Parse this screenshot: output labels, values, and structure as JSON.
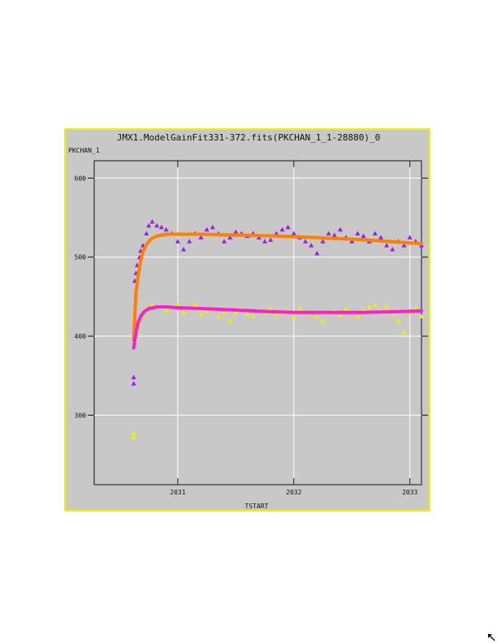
{
  "chart_data": {
    "type": "scatter",
    "title": "JMX1.ModelGainFit331-372.fits(PKCHAN_1_1-28880)_0",
    "xlabel": "TSTART",
    "ylabel": "PKCHAN_1",
    "xlim": [
      2030.28,
      2033.1
    ],
    "ylim": [
      212,
      622
    ],
    "grid": true,
    "x_ticks": [
      2031,
      2032,
      2033
    ],
    "y_ticks": [
      300,
      400,
      500,
      600
    ],
    "series": [
      {
        "color": "#9a1fe6",
        "marker": "triangle",
        "points": [
          [
            2030.62,
            340
          ],
          [
            2030.62,
            348
          ],
          [
            2030.63,
            470
          ],
          [
            2030.64,
            480
          ],
          [
            2030.65,
            490
          ],
          [
            2030.67,
            500
          ],
          [
            2030.68,
            508
          ],
          [
            2030.7,
            515
          ],
          [
            2030.73,
            530
          ],
          [
            2030.75,
            540
          ],
          [
            2030.78,
            545
          ],
          [
            2030.82,
            540
          ],
          [
            2030.86,
            538
          ],
          [
            2030.9,
            535
          ],
          [
            2030.95,
            530
          ],
          [
            2031.0,
            520
          ],
          [
            2031.05,
            510
          ],
          [
            2031.1,
            520
          ],
          [
            2031.15,
            530
          ],
          [
            2031.2,
            525
          ],
          [
            2031.25,
            535
          ],
          [
            2031.3,
            538
          ],
          [
            2031.35,
            530
          ],
          [
            2031.4,
            520
          ],
          [
            2031.45,
            525
          ],
          [
            2031.5,
            532
          ],
          [
            2031.55,
            530
          ],
          [
            2031.6,
            527
          ],
          [
            2031.65,
            530
          ],
          [
            2031.7,
            525
          ],
          [
            2031.75,
            520
          ],
          [
            2031.8,
            522
          ],
          [
            2031.85,
            530
          ],
          [
            2031.9,
            535
          ],
          [
            2031.95,
            538
          ],
          [
            2032.0,
            530
          ],
          [
            2032.05,
            525
          ],
          [
            2032.1,
            520
          ],
          [
            2032.15,
            515
          ],
          [
            2032.2,
            505
          ],
          [
            2032.25,
            520
          ],
          [
            2032.3,
            530
          ],
          [
            2032.35,
            528
          ],
          [
            2032.4,
            535
          ],
          [
            2032.45,
            525
          ],
          [
            2032.5,
            520
          ],
          [
            2032.55,
            530
          ],
          [
            2032.6,
            527
          ],
          [
            2032.65,
            520
          ],
          [
            2032.7,
            530
          ],
          [
            2032.75,
            525
          ],
          [
            2032.8,
            515
          ],
          [
            2032.85,
            510
          ],
          [
            2032.9,
            520
          ],
          [
            2032.95,
            515
          ],
          [
            2033.0,
            525
          ],
          [
            2033.05,
            520
          ],
          [
            2033.1,
            515
          ]
        ]
      },
      {
        "color": "#ff8000",
        "marker": "line",
        "points": [
          [
            2030.62,
            395
          ],
          [
            2030.64,
            455
          ],
          [
            2030.66,
            478
          ],
          [
            2030.68,
            495
          ],
          [
            2030.7,
            507
          ],
          [
            2030.73,
            516
          ],
          [
            2030.77,
            523
          ],
          [
            2030.82,
            527
          ],
          [
            2030.9,
            529
          ],
          [
            2031.0,
            529
          ],
          [
            2031.2,
            529
          ],
          [
            2031.5,
            528
          ],
          [
            2031.8,
            527
          ],
          [
            2032.0,
            526
          ],
          [
            2032.3,
            524
          ],
          [
            2032.6,
            522
          ],
          [
            2032.9,
            519
          ],
          [
            2033.1,
            517
          ]
        ]
      },
      {
        "color": "#f0f000",
        "marker": "triangle",
        "points": [
          [
            2030.62,
            272
          ],
          [
            2030.62,
            277
          ],
          [
            2030.63,
            395
          ],
          [
            2030.65,
            405
          ],
          [
            2030.67,
            415
          ],
          [
            2030.7,
            425
          ],
          [
            2030.73,
            435
          ],
          [
            2030.78,
            440
          ],
          [
            2030.85,
            438
          ],
          [
            2030.9,
            432
          ],
          [
            2030.95,
            437
          ],
          [
            2031.0,
            440
          ],
          [
            2031.05,
            430
          ],
          [
            2031.1,
            435
          ],
          [
            2031.15,
            440
          ],
          [
            2031.2,
            428
          ],
          [
            2031.25,
            432
          ],
          [
            2031.3,
            436
          ],
          [
            2031.35,
            425
          ],
          [
            2031.4,
            430
          ],
          [
            2031.45,
            420
          ],
          [
            2031.5,
            430
          ],
          [
            2031.55,
            435
          ],
          [
            2031.6,
            428
          ],
          [
            2031.65,
            425
          ],
          [
            2031.7,
            432
          ],
          [
            2031.75,
            430
          ],
          [
            2031.8,
            435
          ],
          [
            2031.85,
            428
          ],
          [
            2031.9,
            430
          ],
          [
            2031.95,
            432
          ],
          [
            2032.0,
            425
          ],
          [
            2032.05,
            435
          ],
          [
            2032.1,
            430
          ],
          [
            2032.15,
            428
          ],
          [
            2032.2,
            425
          ],
          [
            2032.25,
            420
          ],
          [
            2032.3,
            430
          ],
          [
            2032.35,
            432
          ],
          [
            2032.4,
            427
          ],
          [
            2032.45,
            435
          ],
          [
            2032.5,
            430
          ],
          [
            2032.55,
            425
          ],
          [
            2032.6,
            433
          ],
          [
            2032.65,
            437
          ],
          [
            2032.7,
            440
          ],
          [
            2032.75,
            432
          ],
          [
            2032.8,
            438
          ],
          [
            2032.85,
            430
          ],
          [
            2032.9,
            420
          ],
          [
            2032.95,
            405
          ],
          [
            2033.0,
            430
          ],
          [
            2033.05,
            435
          ],
          [
            2033.1,
            425
          ]
        ]
      },
      {
        "color": "#ff1fc8",
        "marker": "line",
        "points": [
          [
            2030.62,
            385
          ],
          [
            2030.64,
            405
          ],
          [
            2030.66,
            418
          ],
          [
            2030.68,
            425
          ],
          [
            2030.71,
            431
          ],
          [
            2030.75,
            435
          ],
          [
            2030.82,
            437
          ],
          [
            2030.9,
            437
          ],
          [
            2031.0,
            436
          ],
          [
            2031.2,
            435
          ],
          [
            2031.5,
            433
          ],
          [
            2031.8,
            431
          ],
          [
            2032.0,
            430
          ],
          [
            2032.3,
            430
          ],
          [
            2032.6,
            430
          ],
          [
            2032.9,
            431
          ],
          [
            2033.1,
            432
          ]
        ]
      }
    ]
  }
}
